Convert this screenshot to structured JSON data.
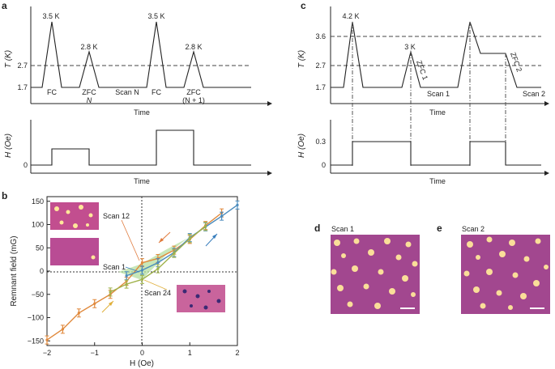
{
  "panels": {
    "a": {
      "label": "a",
      "top": {
        "ylabel": "T (K)",
        "xlabel": "Time",
        "yticks": [
          "1.7",
          "2.7"
        ],
        "peaks": [
          "3.5 K",
          "2.8 K",
          "3.5 K",
          "2.8 K"
        ],
        "segments": [
          "FC",
          "ZFC",
          "N",
          "Scan N",
          "FC",
          "ZFC",
          "(N + 1)"
        ]
      },
      "bottom": {
        "ylabel": "H (Oe)",
        "xlabel": "Time",
        "yticks": [
          "0"
        ]
      }
    },
    "c": {
      "label": "c",
      "top": {
        "ylabel": "T (K)",
        "xlabel": "Time",
        "yticks": [
          "1.7",
          "2.7",
          "3.6"
        ],
        "peaks": [
          "4.2 K",
          "3 K"
        ],
        "segments": [
          "ZFC 1",
          "Scan 1",
          "ZFC 2",
          "Scan 2"
        ]
      },
      "bottom": {
        "ylabel": "H (Oe)",
        "xlabel": "Time",
        "yticks": [
          "0",
          "0.3"
        ]
      }
    },
    "b": {
      "label": "b",
      "insets": [
        "Scan 12",
        "Scan 1",
        "Scan 24"
      ]
    },
    "d": {
      "label": "d",
      "title": "Scan 1"
    },
    "e": {
      "label": "e",
      "title": "Scan 2"
    }
  },
  "chart_data": {
    "type": "line",
    "xlabel": "H (Oe)",
    "ylabel": "Remnant field (mG)",
    "xlim": [
      -2,
      2
    ],
    "ylim": [
      -160,
      160
    ],
    "xticks": [
      -2,
      -1,
      0,
      1,
      2
    ],
    "yticks": [
      -150,
      -100,
      -50,
      0,
      50,
      100,
      150
    ],
    "series": [
      {
        "color": "#e0893c",
        "x": [
          -2.0,
          -1.67,
          -1.33,
          -1.0,
          -0.67,
          -0.33,
          0.0,
          0.33,
          0.67,
          1.0,
          1.33,
          1.67
        ],
        "y": [
          -148,
          -125,
          -90,
          -70,
          -50,
          -22,
          18,
          27,
          45,
          68,
          98,
          125
        ]
      },
      {
        "color": "#4a8bbd",
        "x": [
          -0.33,
          0.0,
          0.33,
          0.67,
          1.0,
          1.33,
          1.67,
          2.0
        ],
        "y": [
          -10,
          2,
          18,
          40,
          72,
          95,
          118,
          142
        ]
      },
      {
        "color": "#9fb24a",
        "x": [
          -0.67,
          -0.33,
          0.0,
          0.33,
          0.67,
          1.0,
          1.33
        ],
        "y": [
          -45,
          -28,
          -18,
          5,
          38,
          70,
          96
        ]
      }
    ]
  }
}
